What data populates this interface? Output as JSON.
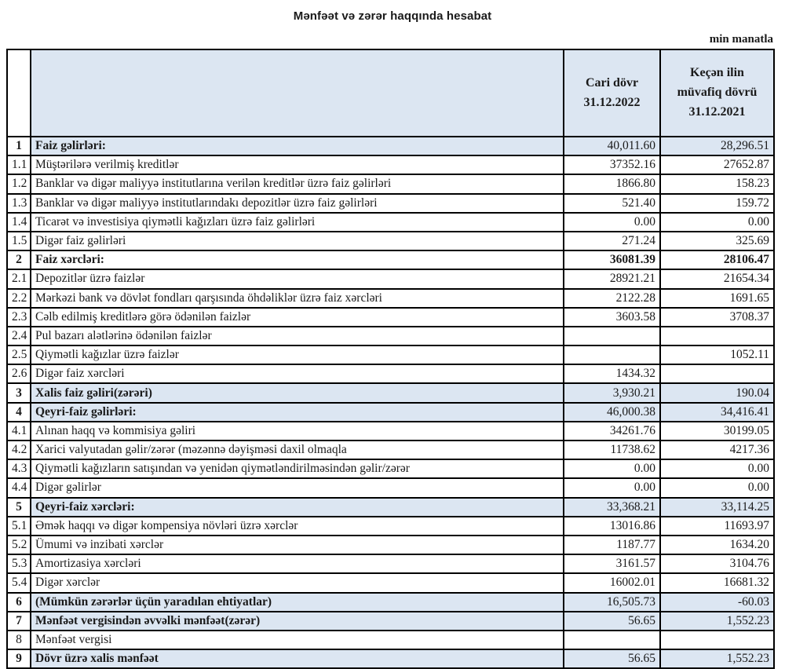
{
  "page": {
    "title": "Mənfəət və zərər haqqında hesabat",
    "unit_note": "min manatla"
  },
  "table": {
    "header": {
      "number_col": "",
      "label_col": "",
      "current_period": "Cari dövr\n31.12.2022",
      "prior_period": "Keçən ilin\nmüvafiq dövrü\n31.12.2021"
    },
    "rows": [
      {
        "num": "1",
        "label": "Faiz gəlirləri:",
        "current": "40,011.60",
        "prior": "28,296.51",
        "emphasis": true,
        "highlight": true,
        "values_bold": false
      },
      {
        "num": "1.1",
        "label": "Müştərilərə verilmiş kreditlər",
        "current": "37352.16",
        "prior": "27652.87",
        "emphasis": false,
        "highlight": false,
        "values_bold": false
      },
      {
        "num": "1.2",
        "label": "Banklar və digər maliyyə institutlarına verilən kreditlər üzrə faiz gəlirləri",
        "current": "1866.80",
        "prior": "158.23",
        "emphasis": false,
        "highlight": false,
        "values_bold": false
      },
      {
        "num": "1.3",
        "label": "Banklar və digər maliyyə institutlarındakı depozitlər üzrə faiz gəlirləri",
        "current": "521.40",
        "prior": "159.72",
        "emphasis": false,
        "highlight": false,
        "values_bold": false
      },
      {
        "num": "1.4",
        "label": "Ticarət və investisiya qiymətli kağızları üzrə faiz gəlirləri",
        "current": "0.00",
        "prior": "0.00",
        "emphasis": false,
        "highlight": false,
        "values_bold": false
      },
      {
        "num": "1.5",
        "label": "Digər faiz gəlirləri",
        "current": "271.24",
        "prior": "325.69",
        "emphasis": false,
        "highlight": false,
        "values_bold": false
      },
      {
        "num": "2",
        "label": "Faiz xərcləri:",
        "current": "36081.39",
        "prior": "28106.47",
        "emphasis": true,
        "highlight": false,
        "values_bold": true
      },
      {
        "num": "2.1",
        "label": "Depozitlər üzrə faizlər",
        "current": "28921.21",
        "prior": "21654.34",
        "emphasis": false,
        "highlight": false,
        "values_bold": false
      },
      {
        "num": "2.2",
        "label": "Mərkəzi bank və dövlət fondları qarşısında öhdəliklər üzrə faiz xərcləri",
        "current": "2122.28",
        "prior": "1691.65",
        "emphasis": false,
        "highlight": false,
        "values_bold": false
      },
      {
        "num": "2.3",
        "label": "Cəlb edilmiş kreditlərə görə ödənilən faizlər",
        "current": "3603.58",
        "prior": "3708.37",
        "emphasis": false,
        "highlight": false,
        "values_bold": false
      },
      {
        "num": "2.4",
        "label": "Pul bazarı alətlərinə ödənilən faizlər",
        "current": "",
        "prior": "",
        "emphasis": false,
        "highlight": false,
        "values_bold": false
      },
      {
        "num": "2.5",
        "label": "Qiymətli kağızlar üzrə faizlər",
        "current": "",
        "prior": "1052.11",
        "emphasis": false,
        "highlight": false,
        "values_bold": false
      },
      {
        "num": "2.6",
        "label": "Digər faiz xərcləri",
        "current": "1434.32",
        "prior": "",
        "emphasis": false,
        "highlight": false,
        "values_bold": false
      },
      {
        "num": "3",
        "label": "Xalis faiz gəliri(zərəri)",
        "current": "3,930.21",
        "prior": "190.04",
        "emphasis": true,
        "highlight": true,
        "values_bold": false
      },
      {
        "num": "4",
        "label": "Qeyri-faiz gəlirləri:",
        "current": "46,000.38",
        "prior": "34,416.41",
        "emphasis": true,
        "highlight": true,
        "values_bold": false
      },
      {
        "num": "4.1",
        "label": "Alınan haqq və kommisiya gəliri",
        "current": "34261.76",
        "prior": "30199.05",
        "emphasis": false,
        "highlight": false,
        "values_bold": false
      },
      {
        "num": "4.2",
        "label": "Xarici valyutadan gəlir/zərər (məzənnə dəyişməsi daxil olmaqla",
        "current": "11738.62",
        "prior": "4217.36",
        "emphasis": false,
        "highlight": false,
        "values_bold": false
      },
      {
        "num": "4.3",
        "label": "Qiymətli kağızların satışından və yenidən qiymətləndirilməsindən gəlir/zərər",
        "current": "0.00",
        "prior": "0.00",
        "emphasis": false,
        "highlight": false,
        "values_bold": false
      },
      {
        "num": "4.4",
        "label": "Digər gəlirlər",
        "current": "0.00",
        "prior": "0.00",
        "emphasis": false,
        "highlight": false,
        "values_bold": false
      },
      {
        "num": "5",
        "label": "Qeyri-faiz xərcləri:",
        "current": "33,368.21",
        "prior": "33,114.25",
        "emphasis": true,
        "highlight": true,
        "values_bold": false
      },
      {
        "num": "5.1",
        "label": "Əmək haqqı və digər kompensiya növləri üzrə xərclər",
        "current": "13016.86",
        "prior": "11693.97",
        "emphasis": false,
        "highlight": false,
        "values_bold": false
      },
      {
        "num": "5.2",
        "label": "Ümumi və inzibati xərclər",
        "current": "1187.77",
        "prior": "1634.20",
        "emphasis": false,
        "highlight": false,
        "values_bold": false
      },
      {
        "num": "5.3",
        "label": "Amortizasiya xərcləri",
        "current": "3161.57",
        "prior": "3104.76",
        "emphasis": false,
        "highlight": false,
        "values_bold": false
      },
      {
        "num": "5.4",
        "label": "Digər xərclər",
        "current": "16002.01",
        "prior": "16681.32",
        "emphasis": false,
        "highlight": false,
        "values_bold": false
      },
      {
        "num": "6",
        "label": "(Mümkün zərərlər üçün yaradılan ehtiyatlar)",
        "current": "16,505.73",
        "prior": "-60.03",
        "emphasis": true,
        "highlight": true,
        "values_bold": false
      },
      {
        "num": "7",
        "label": "Mənfəət vergisindən əvvəlki mənfəət(zərər)",
        "current": "56.65",
        "prior": "1,552.23",
        "emphasis": true,
        "highlight": true,
        "values_bold": false
      },
      {
        "num": "8",
        "label": "Mənfəət vergisi",
        "current": "",
        "prior": "",
        "emphasis": false,
        "highlight": false,
        "values_bold": false
      },
      {
        "num": "9",
        "label": "Dövr üzrə xalis mənfəət",
        "current": "56.65",
        "prior": "1,552.23",
        "emphasis": true,
        "highlight": true,
        "values_bold": false
      }
    ]
  }
}
